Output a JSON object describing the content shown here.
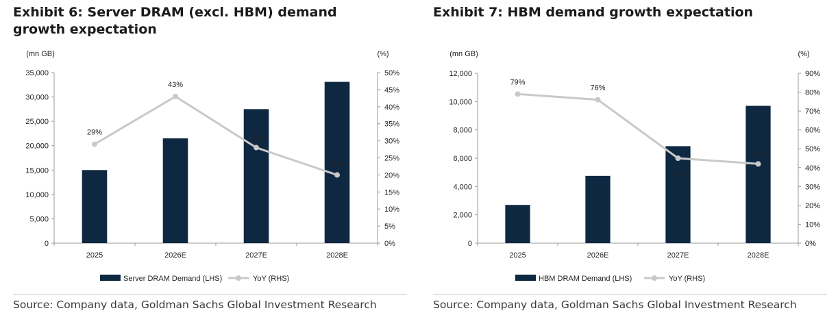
{
  "colors": {
    "bar": "#0e2841",
    "line": "#c9c9c9",
    "axis": "#9a9a9a",
    "text": "#222222"
  },
  "exhibits": [
    {
      "title": "Exhibit 6: Server DRAM (excl. HBM) demand growth expectation",
      "source": "Source: Company data, Goldman Sachs Global Investment Research",
      "chart_data": {
        "type": "bar",
        "categories": [
          "2025",
          "2026E",
          "2027E",
          "2028E"
        ],
        "series": [
          {
            "name": "Server DRAM Demand (LHS)",
            "type": "bar",
            "axis": "left",
            "values": [
              15000,
              21500,
              27500,
              33100
            ]
          },
          {
            "name": "YoY (RHS)",
            "type": "line",
            "axis": "right",
            "values": [
              29,
              43,
              28,
              20
            ],
            "labels": [
              "29%",
              "43%",
              "28%",
              "20%"
            ]
          }
        ],
        "left_unit": "(mn GB)",
        "right_unit": "(%)",
        "ylim_left": [
          0,
          35000
        ],
        "yticks_left": [
          "0",
          "5,000",
          "10,000",
          "15,000",
          "20,000",
          "25,000",
          "30,000",
          "35,000"
        ],
        "ylim_right": [
          0,
          50
        ],
        "yticks_right": [
          "0%",
          "5%",
          "10%",
          "15%",
          "20%",
          "25%",
          "30%",
          "35%",
          "40%",
          "45%",
          "50%"
        ],
        "grid": false,
        "legend": "bottom"
      }
    },
    {
      "title": "Exhibit 7: HBM demand growth expectation",
      "source": "Source: Company data, Goldman Sachs Global Investment Research",
      "chart_data": {
        "type": "bar",
        "categories": [
          "2025",
          "2026E",
          "2027E",
          "2028E"
        ],
        "series": [
          {
            "name": "HBM DRAM Demand (LHS)",
            "type": "bar",
            "axis": "left",
            "values": [
              2700,
              4750,
              6850,
              9700
            ]
          },
          {
            "name": "YoY (RHS)",
            "type": "line",
            "axis": "right",
            "values": [
              79,
              76,
              45,
              42
            ],
            "labels": [
              "79%",
              "76%",
              "45%",
              "42%"
            ]
          }
        ],
        "left_unit": "(mn GB)",
        "right_unit": "(%)",
        "ylim_left": [
          0,
          12000
        ],
        "yticks_left": [
          "0",
          "2,000",
          "4,000",
          "6,000",
          "8,000",
          "10,000",
          "12,000"
        ],
        "ylim_right": [
          0,
          90
        ],
        "yticks_right": [
          "0%",
          "10%",
          "20%",
          "30%",
          "40%",
          "50%",
          "60%",
          "70%",
          "80%",
          "90%"
        ],
        "grid": false,
        "legend": "bottom"
      }
    }
  ]
}
